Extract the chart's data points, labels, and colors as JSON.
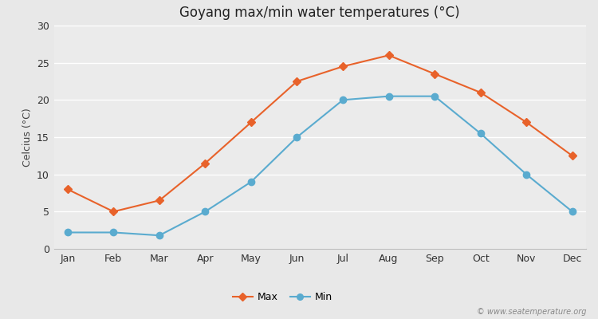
{
  "title": "Goyang max/min water temperatures (°C)",
  "ylabel": "Celcius (°C)",
  "months": [
    "Jan",
    "Feb",
    "Mar",
    "Apr",
    "May",
    "Jun",
    "Jul",
    "Aug",
    "Sep",
    "Oct",
    "Nov",
    "Dec"
  ],
  "max_values": [
    8,
    5,
    6.5,
    11.5,
    17,
    22.5,
    24.5,
    26,
    23.5,
    21,
    17,
    12.5
  ],
  "min_values": [
    2.2,
    2.2,
    1.8,
    5,
    9,
    15,
    20,
    20.5,
    20.5,
    15.5,
    10,
    5
  ],
  "max_color": "#e8622a",
  "min_color": "#5aabcf",
  "fig_bg_color": "#e8e8e8",
  "plot_bg_color": "#ebebeb",
  "ylim": [
    0,
    30
  ],
  "yticks": [
    0,
    5,
    10,
    15,
    20,
    25,
    30
  ],
  "watermark": "© www.seatemperature.org",
  "grid_color": "#ffffff",
  "legend_max": "Max",
  "legend_min": "Min",
  "title_fontsize": 12,
  "axis_label_fontsize": 9,
  "tick_fontsize": 9
}
